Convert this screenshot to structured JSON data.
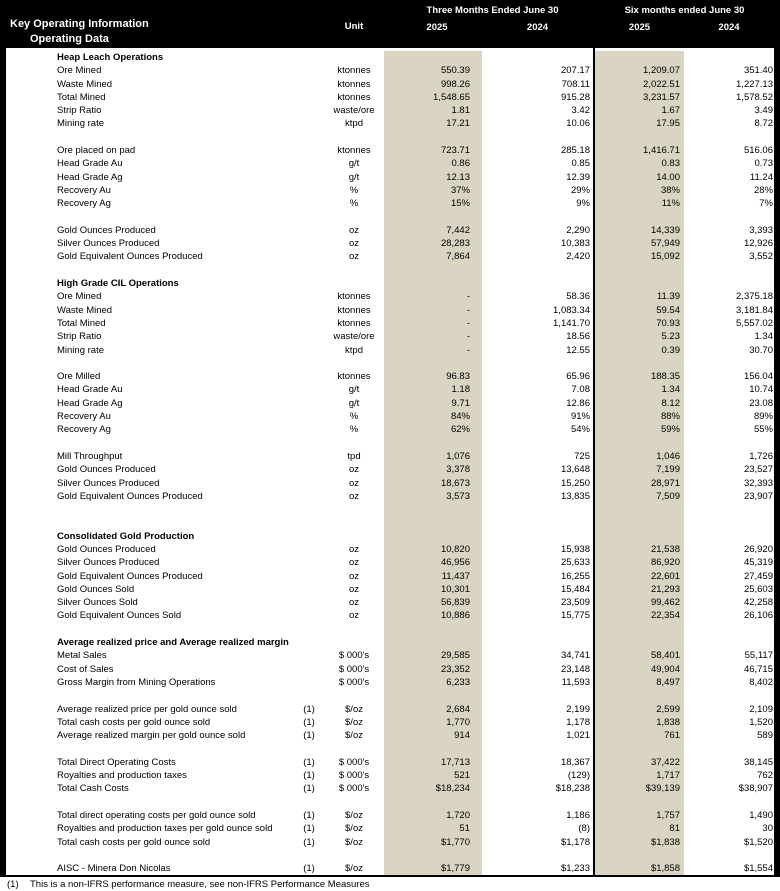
{
  "header": {
    "title": "Key Operating Information",
    "subtitle": "Operating Data",
    "unit_label": "Unit",
    "group1_label": "Three Months Ended June 30",
    "group1_col1": "2025",
    "group1_col2": "2024",
    "group2_label": "Six months ended June 30",
    "group2_col1": "2025",
    "group2_col2": "2024"
  },
  "colors": {
    "header_bg": "#000000",
    "highlight_column": "#D9D5C2",
    "body_bg": "#FFFFFF"
  },
  "rows": [
    {
      "type": "section",
      "label": "Heap Leach Operations"
    },
    {
      "type": "data",
      "label": "Ore Mined",
      "note": "",
      "unit": "ktonnes",
      "values": [
        "550.39",
        "207.17",
        "1,209.07",
        "351.40"
      ]
    },
    {
      "type": "data",
      "label": "Waste Mined",
      "note": "",
      "unit": "ktonnes",
      "values": [
        "998.26",
        "708.11",
        "2,022.51",
        "1,227.13"
      ]
    },
    {
      "type": "data",
      "label": "Total Mined",
      "note": "",
      "unit": "ktonnes",
      "values": [
        "1,548.65",
        "915.28",
        "3,231.57",
        "1,578.52"
      ]
    },
    {
      "type": "data",
      "label": "Strip Ratio",
      "note": "",
      "unit": "waste/ore",
      "values": [
        "1.81",
        "3.42",
        "1.67",
        "3.49"
      ]
    },
    {
      "type": "data",
      "label": "Mining rate",
      "note": "",
      "unit": "ktpd",
      "values": [
        "17.21",
        "10.06",
        "17.95",
        "8.72"
      ]
    },
    {
      "type": "blank"
    },
    {
      "type": "data",
      "label": "Ore placed on pad",
      "note": "",
      "unit": "ktonnes",
      "values": [
        "723.71",
        "285.18",
        "1,416.71",
        "516.06"
      ]
    },
    {
      "type": "data",
      "label": "Head Grade Au",
      "note": "",
      "unit": "g/t",
      "values": [
        "0.86",
        "0.85",
        "0.83",
        "0.73"
      ]
    },
    {
      "type": "data",
      "label": "Head Grade Ag",
      "note": "",
      "unit": "g/t",
      "values": [
        "12.13",
        "12.39",
        "14.00",
        "11.24"
      ]
    },
    {
      "type": "data",
      "label": "Recovery Au",
      "note": "",
      "unit": "%",
      "values": [
        "37%",
        "29%",
        "38%",
        "28%"
      ]
    },
    {
      "type": "data",
      "label": "Recovery Ag",
      "note": "",
      "unit": "%",
      "values": [
        "15%",
        "9%",
        "11%",
        "7%"
      ]
    },
    {
      "type": "blank"
    },
    {
      "type": "data",
      "label": "Gold Ounces Produced",
      "note": "",
      "unit": "oz",
      "values": [
        "7,442",
        "2,290",
        "14,339",
        "3,393"
      ]
    },
    {
      "type": "data",
      "label": "Silver Ounces Produced",
      "note": "",
      "unit": "oz",
      "values": [
        "28,283",
        "10,383",
        "57,949",
        "12,926"
      ]
    },
    {
      "type": "data",
      "label": "Gold Equivalent Ounces Produced",
      "note": "",
      "unit": "oz",
      "values": [
        "7,864",
        "2,420",
        "15,092",
        "3,552"
      ]
    },
    {
      "type": "blank"
    },
    {
      "type": "section",
      "label": "High Grade CIL Operations"
    },
    {
      "type": "data",
      "label": "Ore Mined",
      "note": "",
      "unit": "ktonnes",
      "values": [
        "-",
        "58.36",
        "11.39",
        "2,375.18"
      ]
    },
    {
      "type": "data",
      "label": "Waste Mined",
      "note": "",
      "unit": "ktonnes",
      "values": [
        "-",
        "1,083.34",
        "59.54",
        "3,181.84"
      ]
    },
    {
      "type": "data",
      "label": "Total Mined",
      "note": "",
      "unit": "ktonnes",
      "values": [
        "-",
        "1,141.70",
        "70.93",
        "5,557.02"
      ]
    },
    {
      "type": "data",
      "label": "Strip Ratio",
      "note": "",
      "unit": "waste/ore",
      "values": [
        "-",
        "18.56",
        "5.23",
        "1.34"
      ]
    },
    {
      "type": "data",
      "label": "Mining rate",
      "note": "",
      "unit": "ktpd",
      "values": [
        "-",
        "12.55",
        "0.39",
        "30.70"
      ]
    },
    {
      "type": "blank"
    },
    {
      "type": "data",
      "label": "Ore Milled",
      "note": "",
      "unit": "ktonnes",
      "values": [
        "96.83",
        "65.96",
        "188.35",
        "156.04"
      ]
    },
    {
      "type": "data",
      "label": "Head Grade Au",
      "note": "",
      "unit": "g/t",
      "values": [
        "1.18",
        "7.08",
        "1.34",
        "10.74"
      ]
    },
    {
      "type": "data",
      "label": "Head Grade Ag",
      "note": "",
      "unit": "g/t",
      "values": [
        "9.71",
        "12.86",
        "8.12",
        "23.08"
      ]
    },
    {
      "type": "data",
      "label": "Recovery Au",
      "note": "",
      "unit": "%",
      "values": [
        "84%",
        "91%",
        "88%",
        "89%"
      ]
    },
    {
      "type": "data",
      "label": "Recovery Ag",
      "note": "",
      "unit": "%",
      "values": [
        "62%",
        "54%",
        "59%",
        "55%"
      ]
    },
    {
      "type": "blank"
    },
    {
      "type": "data",
      "label": "Mill Throughput",
      "note": "",
      "unit": "tpd",
      "values": [
        "1,076",
        "725",
        "1,046",
        "1,726"
      ]
    },
    {
      "type": "data",
      "label": "Gold Ounces Produced",
      "note": "",
      "unit": "oz",
      "values": [
        "3,378",
        "13,648",
        "7,199",
        "23,527"
      ]
    },
    {
      "type": "data",
      "label": "Silver Ounces Produced",
      "note": "",
      "unit": "oz",
      "values": [
        "18,673",
        "15,250",
        "28,971",
        "32,393"
      ]
    },
    {
      "type": "data",
      "label": "Gold Equivalent Ounces Produced",
      "note": "",
      "unit": "oz",
      "values": [
        "3,573",
        "13,835",
        "7,509",
        "23,907"
      ]
    },
    {
      "type": "blank"
    },
    {
      "type": "blank"
    },
    {
      "type": "section",
      "label": "Consolidated Gold Production"
    },
    {
      "type": "data",
      "label": "Gold Ounces Produced",
      "note": "",
      "unit": "oz",
      "values": [
        "10,820",
        "15,938",
        "21,538",
        "26,920"
      ]
    },
    {
      "type": "data",
      "label": "Silver Ounces Produced",
      "note": "",
      "unit": "oz",
      "values": [
        "46,956",
        "25,633",
        "86,920",
        "45,319"
      ]
    },
    {
      "type": "data",
      "label": "Gold Equivalent Ounces Produced",
      "note": "",
      "unit": "oz",
      "values": [
        "11,437",
        "16,255",
        "22,601",
        "27,459"
      ]
    },
    {
      "type": "data",
      "label": "Gold Ounces Sold",
      "note": "",
      "unit": "oz",
      "values": [
        "10,301",
        "15,484",
        "21,293",
        "25,603"
      ]
    },
    {
      "type": "data",
      "label": "Silver Ounces Sold",
      "note": "",
      "unit": "oz",
      "values": [
        "56,839",
        "23,509",
        "99,462",
        "42,258"
      ]
    },
    {
      "type": "data",
      "label": "Gold Equivalent Ounces Sold",
      "note": "",
      "unit": "oz",
      "values": [
        "10,886",
        "15,775",
        "22,354",
        "26,106"
      ]
    },
    {
      "type": "blank"
    },
    {
      "type": "section",
      "label": "Average realized price and Average realized margin"
    },
    {
      "type": "data",
      "label": "Metal Sales",
      "note": "",
      "unit": "$ 000's",
      "values": [
        "29,585",
        "34,741",
        "58,401",
        "55,117"
      ]
    },
    {
      "type": "data",
      "label": "Cost of Sales",
      "note": "",
      "unit": "$ 000's",
      "values": [
        "23,352",
        "23,148",
        "49,904",
        "46,715"
      ]
    },
    {
      "type": "data",
      "label": "Gross Margin from Mining Operations",
      "note": "",
      "unit": "$ 000's",
      "values": [
        "6,233",
        "11,593",
        "8,497",
        "8,402"
      ]
    },
    {
      "type": "blank"
    },
    {
      "type": "data",
      "label": "Average realized price per gold ounce sold",
      "note": "(1)",
      "unit": "$/oz",
      "values": [
        "2,684",
        "2,199",
        "2,599",
        "2,109"
      ]
    },
    {
      "type": "data",
      "label": "Total cash costs per gold ounce sold",
      "note": "(1)",
      "unit": "$/oz",
      "values": [
        "1,770",
        "1,178",
        "1,838",
        "1,520"
      ]
    },
    {
      "type": "data",
      "label": "Average realized margin per gold ounce sold",
      "note": "(1)",
      "unit": "$/oz",
      "values": [
        "914",
        "1,021",
        "761",
        "589"
      ]
    },
    {
      "type": "blank"
    },
    {
      "type": "data",
      "label": "Total Direct Operating Costs",
      "note": "(1)",
      "unit": "$ 000's",
      "values": [
        "17,713",
        "18,367",
        "37,422",
        "38,145"
      ]
    },
    {
      "type": "data",
      "label": "Royalties and production taxes",
      "note": "(1)",
      "unit": "$ 000's",
      "values": [
        "521",
        "(129)",
        "1,717",
        "762"
      ]
    },
    {
      "type": "data",
      "label": "Total Cash Costs",
      "note": "(1)",
      "unit": "$ 000's",
      "values": [
        "$18,234",
        "$18,238",
        "$39,139",
        "$38,907"
      ]
    },
    {
      "type": "blank"
    },
    {
      "type": "data",
      "label": "Total direct operating costs per gold ounce sold",
      "note": "(1)",
      "unit": "$/oz",
      "values": [
        "1,720",
        "1,186",
        "1,757",
        "1,490"
      ]
    },
    {
      "type": "data",
      "label": "Royalties and production taxes per gold ounce sold",
      "note": "(1)",
      "unit": "$/oz",
      "values": [
        "51",
        "(8)",
        "81",
        "30"
      ]
    },
    {
      "type": "data",
      "label": "Total cash costs per gold ounce sold",
      "note": "(1)",
      "unit": "$/oz",
      "values": [
        "$1,770",
        "$1,178",
        "$1,838",
        "$1,520"
      ]
    },
    {
      "type": "blank"
    },
    {
      "type": "data",
      "label": "AISC - Minera Don Nicolas",
      "note": "(1)",
      "unit": "$/oz",
      "values": [
        "$1,779",
        "$1,233",
        "$1,858",
        "$1,554"
      ]
    }
  ],
  "footnote": {
    "marker": "(1)",
    "text": "This is a non-IFRS performance measure, see non-IFRS Performance Measures"
  }
}
